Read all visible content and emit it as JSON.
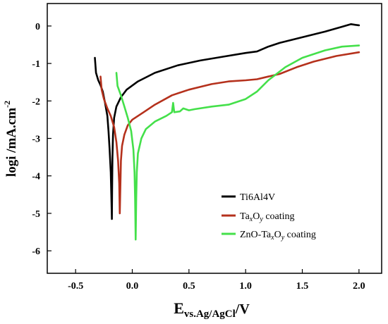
{
  "chart_data": {
    "type": "line",
    "title": "",
    "xlabel": {
      "main": "E",
      "sub": "vs.Ag/AgCl",
      "suffix": "/V"
    },
    "ylabel": {
      "main": "logi /mA.cm",
      "sup": "-2"
    },
    "xlim": [
      -0.75,
      2.2
    ],
    "ylim": [
      -6.6,
      0.6
    ],
    "xticks": [
      "-0.5",
      "0.0",
      "0.5",
      "1.0",
      "1.5",
      "2.0"
    ],
    "xtick_values": [
      -0.5,
      0.0,
      0.5,
      1.0,
      1.5,
      2.0
    ],
    "yticks": [
      "0",
      "-1",
      "-2",
      "-3",
      "-4",
      "-5",
      "-6"
    ],
    "ytick_values": [
      0,
      -1,
      -2,
      -3,
      -4,
      -5,
      -6
    ],
    "grid": false,
    "legend_position": "bottom-right",
    "series": [
      {
        "name": "Ti6Al4V",
        "color": "#000000",
        "legend": {
          "base": "Ti6Al4V"
        },
        "points": [
          [
            -0.33,
            -0.85
          ],
          [
            -0.32,
            -1.25
          ],
          [
            -0.3,
            -1.45
          ],
          [
            -0.28,
            -1.58
          ],
          [
            -0.26,
            -1.75
          ],
          [
            -0.24,
            -2.05
          ],
          [
            -0.22,
            -2.4
          ],
          [
            -0.21,
            -2.8
          ],
          [
            -0.2,
            -3.3
          ],
          [
            -0.19,
            -3.9
          ],
          [
            -0.185,
            -4.5
          ],
          [
            -0.18,
            -5.15
          ],
          [
            -0.178,
            -4.4
          ],
          [
            -0.175,
            -3.5
          ],
          [
            -0.17,
            -2.9
          ],
          [
            -0.16,
            -2.45
          ],
          [
            -0.14,
            -2.15
          ],
          [
            -0.1,
            -1.9
          ],
          [
            -0.05,
            -1.7
          ],
          [
            0.05,
            -1.48
          ],
          [
            0.2,
            -1.25
          ],
          [
            0.4,
            -1.05
          ],
          [
            0.6,
            -0.92
          ],
          [
            0.8,
            -0.82
          ],
          [
            1.0,
            -0.72
          ],
          [
            1.1,
            -0.68
          ],
          [
            1.2,
            -0.55
          ],
          [
            1.3,
            -0.45
          ],
          [
            1.5,
            -0.3
          ],
          [
            1.7,
            -0.15
          ],
          [
            1.85,
            -0.02
          ],
          [
            1.93,
            0.05
          ],
          [
            1.97,
            0.03
          ],
          [
            2.0,
            0.02
          ]
        ]
      },
      {
        "name": "TaxOy coating",
        "color": "#b5311c",
        "legend": {
          "base": "Ta",
          "sub1": "x",
          "mid": "O",
          "sub2": "y",
          "end": " coating"
        },
        "points": [
          [
            -0.28,
            -1.35
          ],
          [
            -0.27,
            -1.7
          ],
          [
            -0.25,
            -1.95
          ],
          [
            -0.22,
            -2.2
          ],
          [
            -0.19,
            -2.4
          ],
          [
            -0.16,
            -2.7
          ],
          [
            -0.14,
            -3.1
          ],
          [
            -0.125,
            -3.6
          ],
          [
            -0.115,
            -4.2
          ],
          [
            -0.11,
            -5.0
          ],
          [
            -0.105,
            -4.3
          ],
          [
            -0.1,
            -3.6
          ],
          [
            -0.09,
            -3.2
          ],
          [
            -0.07,
            -2.9
          ],
          [
            -0.04,
            -2.65
          ],
          [
            0.0,
            -2.5
          ],
          [
            0.1,
            -2.3
          ],
          [
            0.2,
            -2.1
          ],
          [
            0.35,
            -1.85
          ],
          [
            0.5,
            -1.7
          ],
          [
            0.7,
            -1.55
          ],
          [
            0.85,
            -1.48
          ],
          [
            1.0,
            -1.45
          ],
          [
            1.1,
            -1.42
          ],
          [
            1.2,
            -1.35
          ],
          [
            1.3,
            -1.28
          ],
          [
            1.45,
            -1.1
          ],
          [
            1.6,
            -0.95
          ],
          [
            1.8,
            -0.8
          ],
          [
            2.0,
            -0.7
          ]
        ]
      },
      {
        "name": "ZnO-TaxOy coating",
        "color": "#44e04a",
        "legend": {
          "base": "ZnO-Ta",
          "sub1": "x",
          "mid": "O",
          "sub2": "y",
          "end": " coating"
        },
        "points": [
          [
            -0.14,
            -1.25
          ],
          [
            -0.13,
            -1.6
          ],
          [
            -0.1,
            -1.85
          ],
          [
            -0.07,
            -2.15
          ],
          [
            -0.04,
            -2.45
          ],
          [
            -0.01,
            -2.8
          ],
          [
            0.01,
            -3.3
          ],
          [
            0.02,
            -3.9
          ],
          [
            0.025,
            -4.6
          ],
          [
            0.03,
            -5.7
          ],
          [
            0.035,
            -4.6
          ],
          [
            0.04,
            -3.9
          ],
          [
            0.05,
            -3.4
          ],
          [
            0.08,
            -3.0
          ],
          [
            0.12,
            -2.75
          ],
          [
            0.2,
            -2.55
          ],
          [
            0.3,
            -2.4
          ],
          [
            0.35,
            -2.3
          ],
          [
            0.36,
            -2.05
          ],
          [
            0.37,
            -2.3
          ],
          [
            0.42,
            -2.28
          ],
          [
            0.45,
            -2.2
          ],
          [
            0.5,
            -2.25
          ],
          [
            0.55,
            -2.22
          ],
          [
            0.7,
            -2.15
          ],
          [
            0.85,
            -2.1
          ],
          [
            1.0,
            -1.95
          ],
          [
            1.1,
            -1.75
          ],
          [
            1.2,
            -1.45
          ],
          [
            1.35,
            -1.1
          ],
          [
            1.5,
            -0.85
          ],
          [
            1.7,
            -0.65
          ],
          [
            1.85,
            -0.55
          ],
          [
            2.0,
            -0.52
          ]
        ]
      }
    ]
  }
}
